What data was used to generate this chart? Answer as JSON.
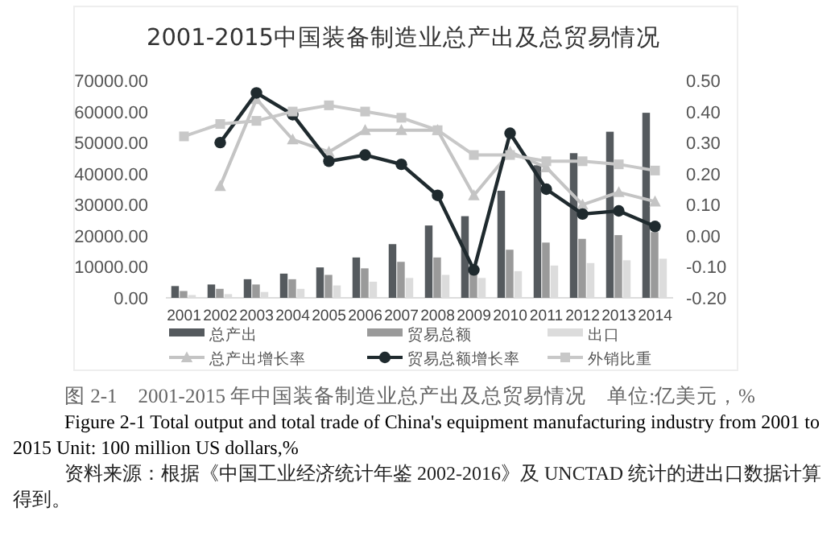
{
  "chart_data": {
    "type": "bar",
    "title": "2001-2015中国装备制造业总产出及总贸易情况",
    "categories": [
      "2001",
      "2002",
      "2003",
      "2004",
      "2005",
      "2006",
      "2007",
      "2008",
      "2009",
      "2010",
      "2011",
      "2012",
      "2013",
      "2014"
    ],
    "series": [
      {
        "name": "总产出",
        "color": "#555a5e",
        "values": [
          3800,
          4300,
          6000,
          7800,
          9800,
          13000,
          17300,
          23300,
          26300,
          34500,
          42700,
          46600,
          53500,
          59600
        ]
      },
      {
        "name": "贸易总额",
        "color": "#9a9a9a",
        "values": [
          2200,
          2900,
          4300,
          6000,
          7400,
          9500,
          11600,
          13000,
          9000,
          15500,
          17800,
          19000,
          20200,
          21200
        ]
      },
      {
        "name": "出口",
        "color": "#dcdcdc",
        "values": [
          900,
          1200,
          1900,
          2900,
          4000,
          5200,
          6400,
          7400,
          6400,
          8600,
          10400,
          11200,
          12100,
          12600
        ]
      },
      {
        "name": "总产出增长率",
        "type": "line",
        "axis": "y2",
        "marker": "triangle",
        "color": "#c4c4c4",
        "values": [
          null,
          0.16,
          0.44,
          0.31,
          0.27,
          0.34,
          0.34,
          0.34,
          0.13,
          0.27,
          0.22,
          0.1,
          0.14,
          0.11
        ]
      },
      {
        "name": "贸易总额增长率",
        "type": "line",
        "axis": "y2",
        "marker": "circle",
        "color": "#1f2a2e",
        "values": [
          null,
          0.3,
          0.46,
          0.39,
          0.24,
          0.26,
          0.23,
          0.13,
          -0.11,
          0.33,
          0.15,
          0.07,
          0.08,
          0.03
        ]
      },
      {
        "name": "外销比重",
        "type": "line",
        "axis": "y2",
        "marker": "square",
        "color": "#c8c8c8",
        "values": [
          0.32,
          0.36,
          0.37,
          0.4,
          0.42,
          0.4,
          0.38,
          0.34,
          0.26,
          0.26,
          0.24,
          0.24,
          0.23,
          0.21
        ]
      }
    ],
    "ylim": [
      0,
      70000
    ],
    "yticks": [
      {
        "value": 0,
        "label": "0.00"
      },
      {
        "value": 10000,
        "label": "10000.00"
      },
      {
        "value": 20000,
        "label": "20000.00"
      },
      {
        "value": 30000,
        "label": "30000.00"
      },
      {
        "value": 40000,
        "label": "40000.00"
      },
      {
        "value": 50000,
        "label": "50000.00"
      },
      {
        "value": 60000,
        "label": "60000.00"
      },
      {
        "value": 70000,
        "label": "70000.00"
      }
    ],
    "y2lim": [
      -0.2,
      0.5
    ],
    "y2ticks": [
      {
        "value": -0.2,
        "label": "-0.20"
      },
      {
        "value": -0.1,
        "label": "-0.10"
      },
      {
        "value": 0,
        "label": "0.00"
      },
      {
        "value": 0.1,
        "label": "0.10"
      },
      {
        "value": 0.2,
        "label": "0.20"
      },
      {
        "value": 0.3,
        "label": "0.30"
      },
      {
        "value": 0.4,
        "label": "0.40"
      },
      {
        "value": 0.5,
        "label": "0.50"
      }
    ],
    "legend": "bottom",
    "annotations": [
      "图 2-1　2001-2015 年中国装备制造业总产出及总贸易情况　单位:亿美元，%",
      "Figure 2-1 Total output and total trade of China's equipment manufacturing industry from 2001 to 2015 Unit: 100 million US dollars,%",
      "资料来源：根据《中国工业经济统计年鉴 2002-2016》及 UNCTAD 统计的进出口数据计算得到。"
    ]
  }
}
